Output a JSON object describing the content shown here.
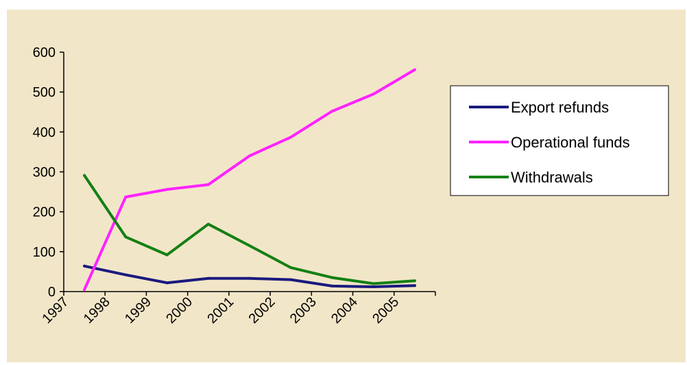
{
  "chart_data": {
    "type": "line",
    "categories": [
      "1997",
      "1998",
      "1999",
      "2000",
      "2001",
      "2002",
      "2003",
      "2004",
      "2005"
    ],
    "series": [
      {
        "name": "Export refunds",
        "color": "#1a1a7e",
        "values": [
          64,
          42,
          22,
          33,
          33,
          30,
          14,
          12,
          15
        ]
      },
      {
        "name": "Operational funds",
        "color": "#ff22ff",
        "values": [
          5,
          237,
          256,
          268,
          340,
          387,
          452,
          495,
          556
        ]
      },
      {
        "name": "Withdrawals",
        "color": "#148014",
        "values": [
          291,
          137,
          92,
          169,
          115,
          60,
          35,
          20,
          27
        ]
      }
    ],
    "yticks": [
      0,
      100,
      200,
      300,
      400,
      500,
      600
    ],
    "ylim": [
      0,
      600
    ],
    "legend_position": "right",
    "grid": false,
    "background": "#f2e6c8"
  }
}
